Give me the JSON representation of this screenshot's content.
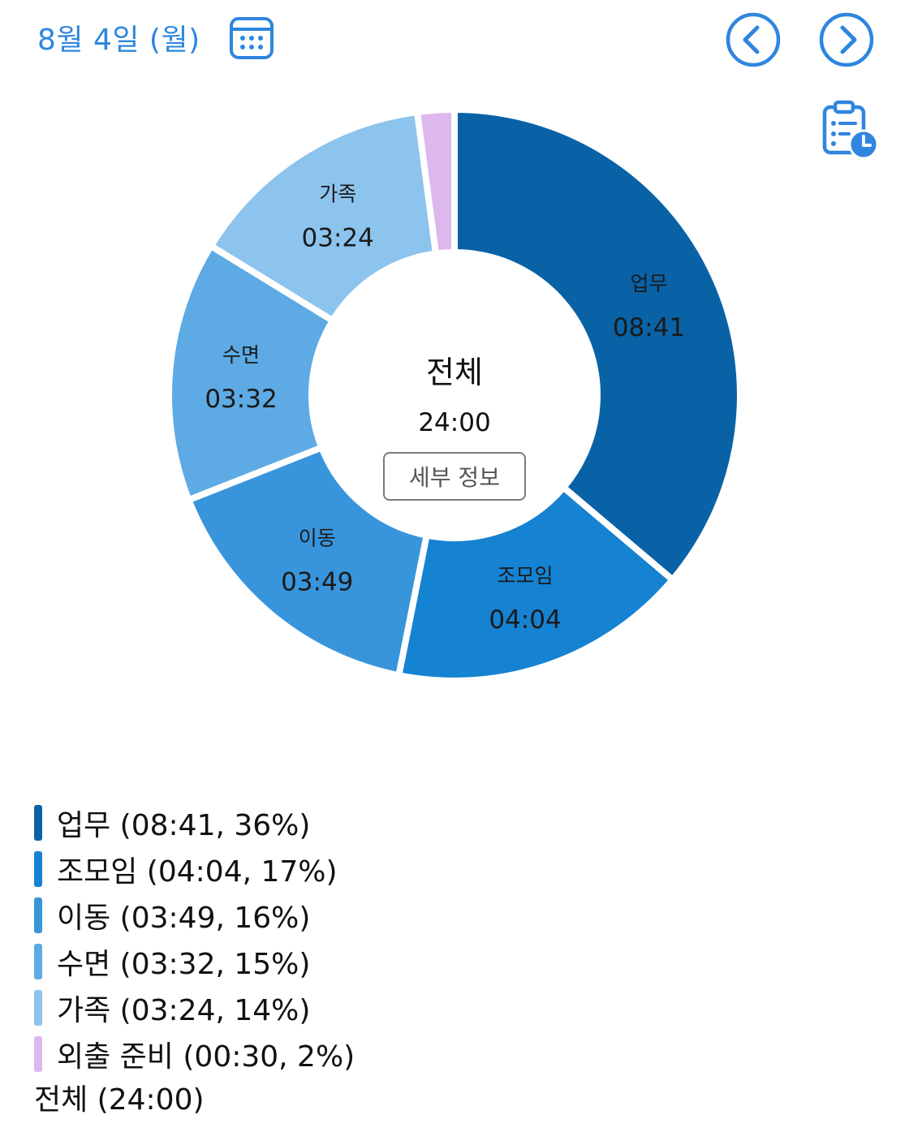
{
  "header": {
    "date": "8월 4일 (월)",
    "icons": {
      "calendar": "calendar-icon",
      "prev": "chevron-left-circle-icon",
      "next": "chevron-right-circle-icon",
      "report": "clipboard-clock-icon"
    },
    "accent_color": "#2E86DE"
  },
  "chart_data": {
    "type": "pie",
    "donut": true,
    "center_label": "전체",
    "center_value": "24:00",
    "total_hours": 24,
    "slices": [
      {
        "name": "업무",
        "time": "08:41",
        "minutes": 521,
        "percent": "36%",
        "color": "#0A62A6"
      },
      {
        "name": "조모임",
        "time": "04:04",
        "minutes": 244,
        "percent": "17%",
        "color": "#1582D2"
      },
      {
        "name": "이동",
        "time": "03:49",
        "minutes": 229,
        "percent": "16%",
        "color": "#3895DB"
      },
      {
        "name": "수면",
        "time": "03:32",
        "minutes": 212,
        "percent": "15%",
        "color": "#5DAAE4"
      },
      {
        "name": "가족",
        "time": "03:24",
        "minutes": 204,
        "percent": "14%",
        "color": "#8DC4EE"
      },
      {
        "name": "외출 준비",
        "time": "00:30",
        "minutes": 30,
        "percent": "2%",
        "color": "#DDB8EC"
      }
    ]
  },
  "detail_button": {
    "label": "세부 정보"
  },
  "legend": {
    "items": [
      "업무 (08:41, 36%)",
      "조모임 (04:04, 17%)",
      "이동 (03:49, 16%)",
      "수면 (03:32, 15%)",
      "가족 (03:24, 14%)",
      "외출 준비 (00:30, 2%)"
    ],
    "total": "전체 (24:00)"
  }
}
